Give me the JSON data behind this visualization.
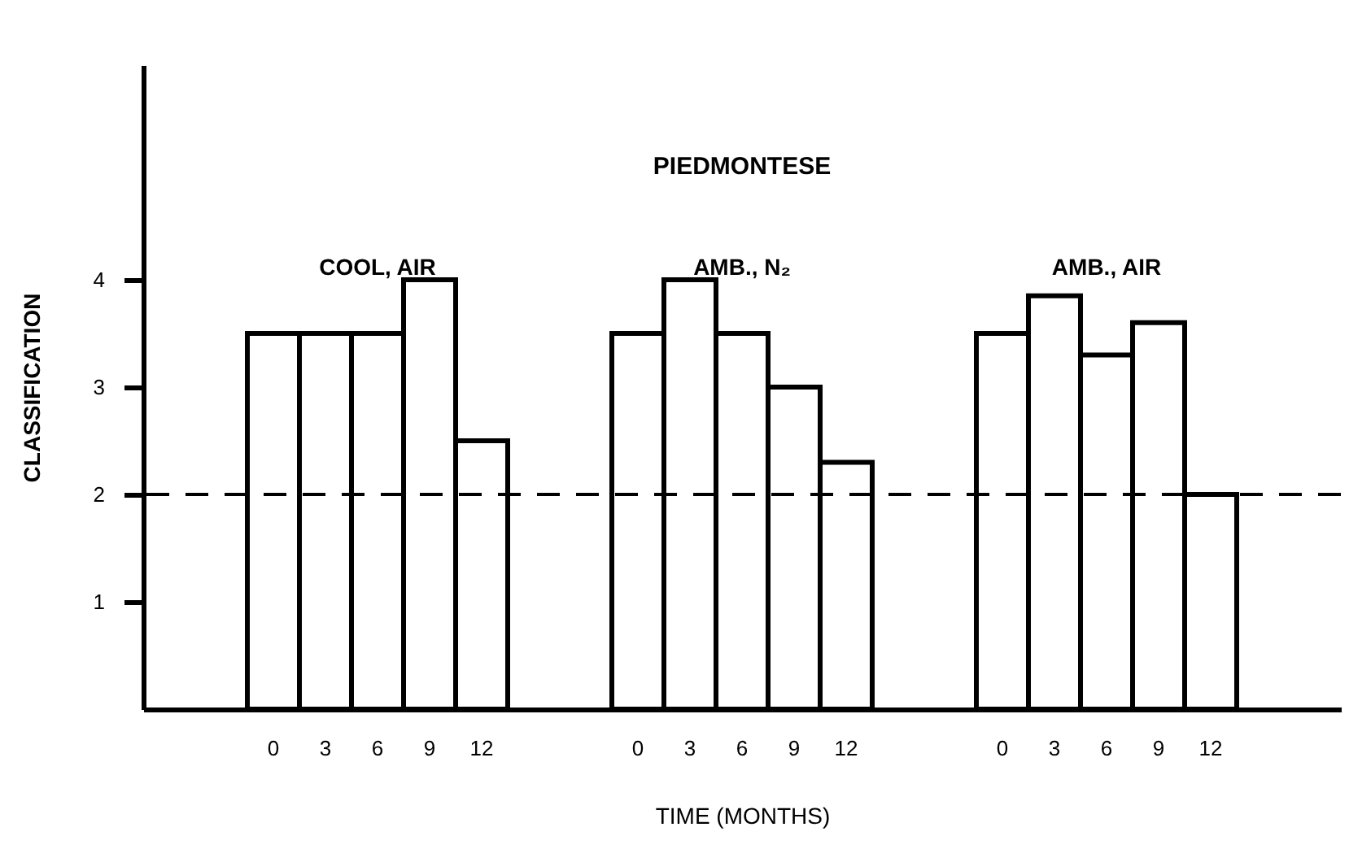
{
  "chart_data": {
    "type": "bar",
    "title": "PIEDMONTESE",
    "xlabel": "TIME (MONTHS)",
    "ylabel": "CLASSIFICATION",
    "categories": [
      null,
      null,
      "0",
      "3",
      "6",
      "9",
      "12",
      null,
      null,
      "0",
      "3",
      "6",
      "9",
      "12",
      null,
      null,
      "0",
      "3",
      "6",
      "9",
      "12",
      null,
      null
    ],
    "values": [
      null,
      null,
      3.5,
      3.5,
      3.5,
      4.0,
      2.5,
      null,
      null,
      3.5,
      4.0,
      3.5,
      3.0,
      2.3,
      null,
      null,
      3.5,
      3.85,
      3.3,
      3.6,
      2.0,
      null,
      null
    ],
    "color": "#ffffff",
    "annotations": [
      "COOL, AIR",
      "AMB., N₂",
      "AMB., AIR"
    ],
    "ylim": [
      0,
      6
    ],
    "yticks": [
      1,
      2,
      3,
      4
    ],
    "grid": false,
    "ref_lines": [
      {
        "axis": "y",
        "value": 2,
        "line_style": "dashed",
        "color": "#000000"
      }
    ]
  }
}
